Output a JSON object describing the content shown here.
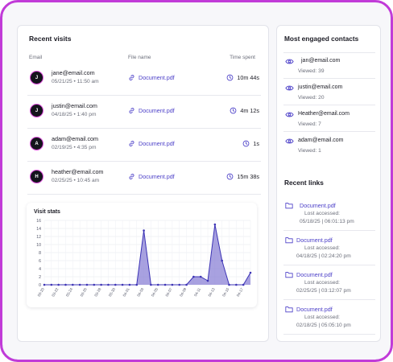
{
  "recent_visits": {
    "title": "Recent visits",
    "columns": {
      "email": "Email",
      "file": "File name",
      "time": "Time spent"
    },
    "rows": [
      {
        "initial": "J",
        "email": "jane@email.com",
        "meta": "05/21/25 • 11:50 am",
        "file": "Document.pdf",
        "time": "10m 44s"
      },
      {
        "initial": "J",
        "email": "justin@email.com",
        "meta": "04/18/25 • 1:40 pm",
        "file": "Document.pdf",
        "time": "4m 12s"
      },
      {
        "initial": "A",
        "email": "adam@email.com",
        "meta": "02/19/25 • 4:35 pm",
        "file": "Document.pdf",
        "time": "1s"
      },
      {
        "initial": "H",
        "email": "heather@email.com",
        "meta": "02/25/25 • 10:45 am",
        "file": "Document.pdf",
        "time": "15m 38s"
      }
    ]
  },
  "chart_data": {
    "type": "area",
    "title": "Visit stats",
    "xlabel": "",
    "ylabel": "",
    "ylim": [
      0,
      16
    ],
    "yticks": [
      0,
      2,
      4,
      6,
      8,
      10,
      12,
      14,
      16
    ],
    "grid": true,
    "categories": [
      "03-20",
      "03-21",
      "03-22",
      "03-23",
      "03-24",
      "03-25",
      "03-26",
      "03-27",
      "03-28",
      "03-29",
      "03-30",
      "03-31",
      "04-01",
      "04-02",
      "04-03",
      "04-04",
      "04-05",
      "04-06",
      "04-07",
      "04-08",
      "04-09",
      "04-10",
      "04-11",
      "04-12",
      "04-13",
      "04-14",
      "04-15",
      "04-16",
      "04-17",
      "04-18"
    ],
    "tick_labels": [
      "03-20",
      "03-22",
      "03-24",
      "03-26",
      "03-28",
      "03-30",
      "04-01",
      "04-03",
      "04-05",
      "04-07",
      "04-09",
      "04-11",
      "04-13",
      "04-15",
      "04-17"
    ],
    "values": [
      0,
      0,
      0,
      0,
      0,
      0,
      0,
      0,
      0,
      0,
      0,
      0,
      0,
      0,
      13.5,
      0,
      0,
      0,
      0,
      0,
      0,
      2,
      2,
      1,
      15,
      6,
      0,
      0,
      0,
      3
    ],
    "color": "#3d34b5",
    "fill": "#8b82d6"
  },
  "engaged": {
    "title": "Most engaged contacts",
    "items": [
      {
        "email": "jan@email.com",
        "views": "Viewed: 39"
      },
      {
        "email": "justin@email.com",
        "views": "Viewed: 20"
      },
      {
        "email": "Heather@email.com",
        "views": "Viewed: 7"
      },
      {
        "email": "adam@email.com",
        "views": "Viewed: 1"
      }
    ]
  },
  "links": {
    "title": "Recent links",
    "accessed_label": "Lost accessed:",
    "items": [
      {
        "name": "Document.pdf",
        "date": "05/18/25 | 06:01:13 pm"
      },
      {
        "name": "Document.pdf",
        "date": "04/18/25 | 02:24:20 pm"
      },
      {
        "name": "Document.pdf",
        "date": "02/25/25 | 03:12:07 pm"
      },
      {
        "name": "Document.pdf",
        "date": "02/18/25 | 05:05:10 pm"
      }
    ]
  },
  "colors": {
    "accent": "#4b3fc8",
    "border_pink": "#c13bd8",
    "avatar_ring": "#d94ad8"
  }
}
